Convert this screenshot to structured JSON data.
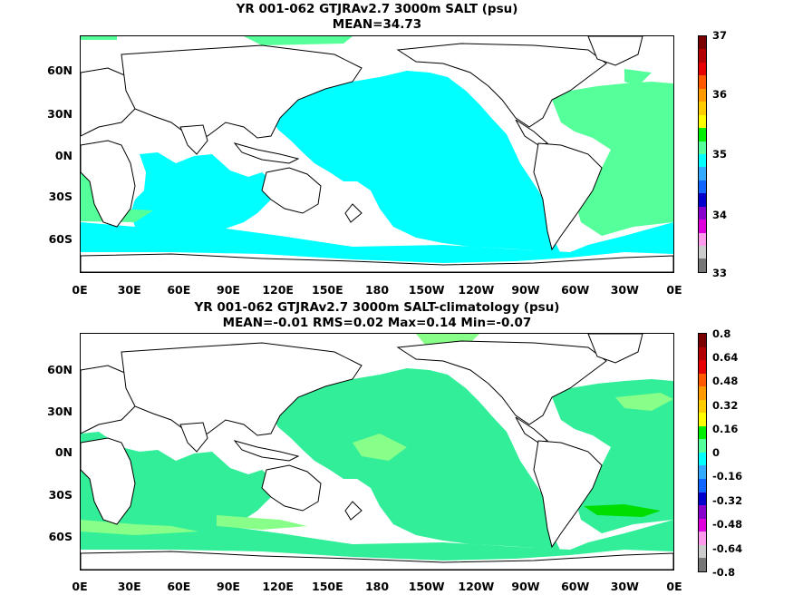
{
  "panels": [
    {
      "title_line1": "YR 001-062 GTJRAv2.7 3000m SALT (psu)",
      "title_line2": "MEAN=34.73",
      "y_labels": [
        "60N",
        "30N",
        "0N",
        "30S",
        "60S"
      ],
      "x_labels": [
        "0E",
        "30E",
        "60E",
        "90E",
        "120E",
        "150E",
        "180",
        "150W",
        "120W",
        "90W",
        "60W",
        "30W",
        "0E"
      ],
      "colorbar_labels": [
        "37",
        "36",
        "35",
        "34",
        "33"
      ],
      "colorbar_colors": [
        "#7a0000",
        "#b30000",
        "#e60000",
        "#ff5a00",
        "#ff9900",
        "#ffcc00",
        "#ffff00",
        "#00ee00",
        "#55ff99",
        "#00ffff",
        "#33aaff",
        "#1166ff",
        "#0000cc",
        "#8800cc",
        "#dd00dd",
        "#ff99ee",
        "#cccccc",
        "#777777"
      ],
      "fill_main": "#00ffff",
      "fill_alt": "#55ff99",
      "fill_strong": "#00ff00"
    },
    {
      "title_line1": "YR 001-062 GTJRAv2.7 3000m SALT-climatology (psu)",
      "title_line2": "MEAN=-0.01   RMS=0.02   Max=0.14   Min=-0.07",
      "y_labels": [
        "60N",
        "30N",
        "0N",
        "30S",
        "60S"
      ],
      "x_labels": [
        "0E",
        "30E",
        "60E",
        "90E",
        "120E",
        "150E",
        "180",
        "150W",
        "120W",
        "90W",
        "60W",
        "30W",
        "0E"
      ],
      "colorbar_labels": [
        "0.8",
        "0.64",
        "0.48",
        "0.32",
        "0.16",
        "0",
        "-0.16",
        "-0.32",
        "-0.48",
        "-0.64",
        "-0.8"
      ],
      "colorbar_colors": [
        "#7a0000",
        "#b30000",
        "#e60000",
        "#ff5a00",
        "#ff9900",
        "#ffcc00",
        "#ffff00",
        "#00ee00",
        "#55ff99",
        "#00ffff",
        "#33aaff",
        "#1166ff",
        "#0000cc",
        "#8800cc",
        "#dd00dd",
        "#ff99ee",
        "#cccccc",
        "#777777"
      ],
      "fill_main": "#33ee99",
      "fill_alt": "#88ff88",
      "fill_strong": "#00dd00"
    }
  ]
}
